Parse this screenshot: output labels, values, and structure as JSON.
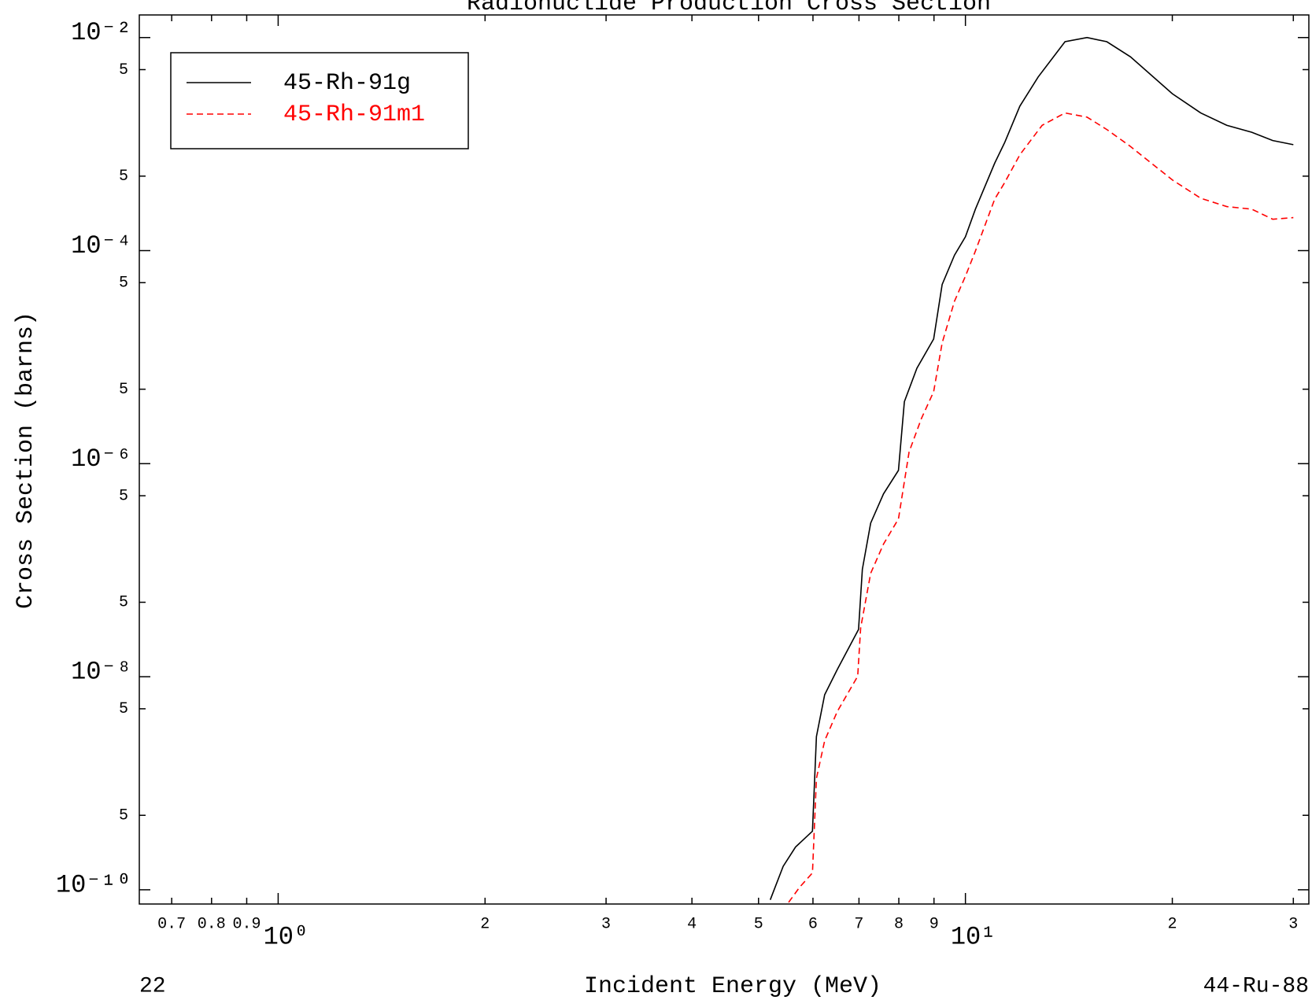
{
  "chart_data": {
    "type": "line",
    "title": "Radionuclide Production Cross Section",
    "xlabel": "Incident Energy (MeV)",
    "ylabel": "Cross Section (barns)",
    "annotations": [
      "22",
      "44-Ru-88"
    ],
    "xscale": "log",
    "yscale": "log",
    "grid": false,
    "legend": "upper left",
    "xlim": [
      0.628,
      31.6
    ],
    "ylim": [
      7.35e-11,
      0.0163
    ],
    "xticks": [
      0.7,
      0.8,
      0.9,
      {
        "value": 1,
        "label": "10⁰"
      },
      2,
      3,
      4,
      5,
      6,
      7,
      8,
      9,
      {
        "value": 10,
        "label": "10¹"
      },
      {
        "value": 20,
        "label": "2"
      },
      {
        "value": 30,
        "label": "3"
      }
    ],
    "yticks": [
      {
        "value": 0.01,
        "label": "10⁻²"
      },
      {
        "value": 0.005,
        "label": "5"
      },
      {
        "value": 0.0005,
        "label": "5"
      },
      {
        "value": 0.0001,
        "label": "10⁻⁴"
      },
      {
        "value": 5e-05,
        "label": "5"
      },
      {
        "value": 5e-06,
        "label": "5"
      },
      {
        "value": 1e-06,
        "label": "10⁻⁶"
      },
      {
        "value": 5e-07,
        "label": "5"
      },
      {
        "value": 5e-08,
        "label": "5"
      },
      {
        "value": 1e-08,
        "label": "10⁻⁸"
      },
      {
        "value": 5e-09,
        "label": "5"
      },
      {
        "value": 5e-10,
        "label": "5"
      },
      {
        "value": 1e-10,
        "label": "10⁻¹⁰"
      }
    ],
    "series": [
      {
        "name": "45-Rh-91g",
        "color": "#000000",
        "line_style": "solid",
        "x": [
          5.2,
          5.43,
          5.66,
          5.99,
          6.07,
          6.24,
          6.51,
          6.99,
          7.08,
          7.28,
          7.6,
          7.99,
          8.15,
          8.5,
          8.99,
          9.25,
          9.64,
          10,
          10.34,
          11.03,
          11.41,
          12.0,
          12.76,
          13.96,
          15.03,
          16.06,
          17.38,
          20.0,
          22.0,
          24.0,
          26.1,
          28.0,
          30.0
        ],
        "values": [
          8.05e-11,
          1.66e-10,
          2.52e-10,
          3.55e-10,
          2.74e-09,
          6.78e-09,
          1.17e-08,
          2.78e-08,
          1.02e-07,
          2.77e-07,
          5.21e-07,
          8.65e-07,
          3.82e-06,
          7.87e-06,
          1.48e-05,
          4.81e-05,
          9.06e-05,
          0.000135,
          0.000245,
          0.000662,
          0.00104,
          0.00227,
          0.00427,
          0.00914,
          0.01,
          0.00914,
          0.0066,
          0.00297,
          0.00196,
          0.0015,
          0.00129,
          0.00108,
          0.000987
        ]
      },
      {
        "name": "45-Rh-91m1",
        "color": "#ff0000",
        "line_style": "dashed",
        "x": [
          5.53,
          5.74,
          5.99,
          6.07,
          6.24,
          6.51,
          6.97,
          7.04,
          7.28,
          7.6,
          7.99,
          8.28,
          8.63,
          8.99,
          9.25,
          9.64,
          10,
          10.34,
          11.03,
          11.41,
          12.0,
          12.93,
          13.96,
          15.03,
          16.06,
          17.38,
          20.0,
          22.0,
          24.0,
          26.1,
          28.0,
          30.0
        ],
        "values": [
          7.62e-11,
          1.06e-10,
          1.44e-10,
          1.11e-09,
          2.51e-09,
          4.72e-09,
          1.01e-08,
          2.88e-08,
          9.35e-08,
          1.76e-07,
          3.03e-07,
          1.29e-06,
          2.66e-06,
          4.74e-06,
          1.36e-05,
          3.35e-05,
          5.75e-05,
          9.91e-05,
          0.000304,
          0.000437,
          0.000794,
          0.0015,
          0.00196,
          0.00179,
          0.00137,
          0.000951,
          0.000461,
          0.00031,
          0.000259,
          0.000245,
          0.000197,
          0.000204
        ]
      }
    ]
  }
}
